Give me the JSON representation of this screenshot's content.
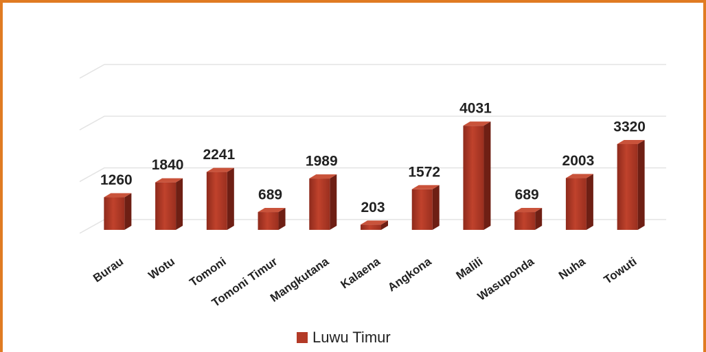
{
  "chart_data": {
    "type": "bar",
    "categories": [
      "Burau",
      "Wotu",
      "Tomoni",
      "Tomoni Timur",
      "Mangkutana",
      "Kalaena",
      "Angkona",
      "Malili",
      "Wasuponda",
      "Nuha",
      "Towuti"
    ],
    "series": [
      {
        "name": "Luwu Timur",
        "color": "#b33a27",
        "values": [
          1260,
          1840,
          2241,
          689,
          1989,
          203,
          1572,
          4031,
          689,
          2003,
          3320
        ]
      }
    ],
    "ylim": [
      0,
      6000
    ],
    "yticks": [
      0,
      2000,
      4000,
      6000
    ],
    "grid": true
  }
}
